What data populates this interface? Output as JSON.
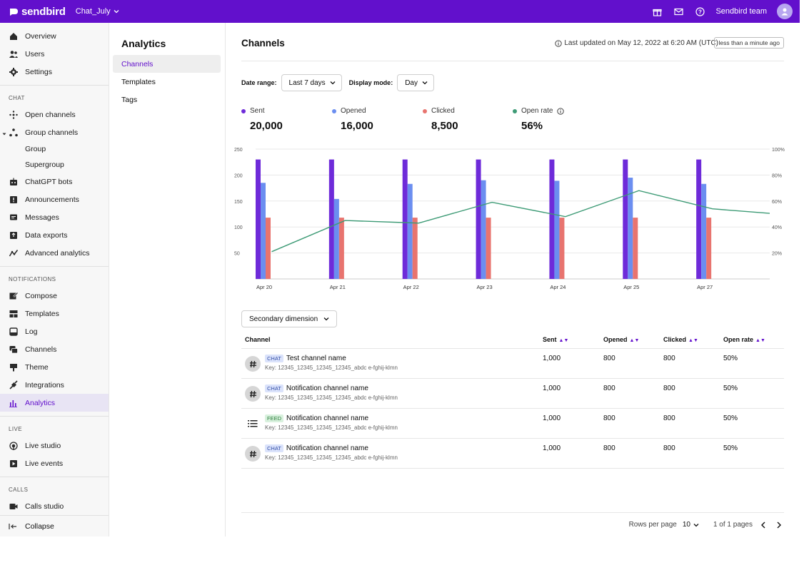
{
  "colors": {
    "brand": "#6210cc",
    "sent": "#6e2bd9",
    "opened": "#6b8ef0",
    "clicked": "#e8746f",
    "open_rate": "#3e9b76"
  },
  "topbar": {
    "logo": "sendbird",
    "app_name": "Chat_July",
    "team": "Sendbird team"
  },
  "sidebar": {
    "top": [
      {
        "label": "Overview",
        "icon": "home-icon"
      },
      {
        "label": "Users",
        "icon": "users-icon"
      },
      {
        "label": "Settings",
        "icon": "gear-icon"
      }
    ],
    "chat_label": "CHAT",
    "chat": [
      {
        "label": "Open channels",
        "icon": "open-channels-icon"
      },
      {
        "label": "Group channels",
        "icon": "group-channels-icon"
      },
      {
        "label": "Group",
        "icon": ""
      },
      {
        "label": "Supergroup",
        "icon": ""
      },
      {
        "label": "ChatGPT bots",
        "icon": "bot-icon"
      },
      {
        "label": "Announcements",
        "icon": "announcement-icon"
      },
      {
        "label": "Messages",
        "icon": "messages-icon"
      },
      {
        "label": "Data exports",
        "icon": "export-icon"
      },
      {
        "label": "Advanced analytics",
        "icon": "analytics-line-icon"
      }
    ],
    "notifications_label": "NOTIFICATIONS",
    "notifications": [
      {
        "label": "Compose",
        "icon": "compose-icon"
      },
      {
        "label": "Templates",
        "icon": "templates-icon"
      },
      {
        "label": "Log",
        "icon": "log-icon"
      },
      {
        "label": "Channels",
        "icon": "channels-icon"
      },
      {
        "label": "Theme",
        "icon": "theme-icon"
      },
      {
        "label": "Integrations",
        "icon": "integrations-icon"
      },
      {
        "label": "Analytics",
        "icon": "bar-chart-icon"
      }
    ],
    "live_label": "LIVE",
    "live": [
      {
        "label": "Live studio",
        "icon": "live-studio-icon"
      },
      {
        "label": "Live events",
        "icon": "live-events-icon"
      }
    ],
    "calls_label": "CALLS",
    "calls": [
      {
        "label": "Calls studio",
        "icon": "calls-studio-icon"
      }
    ],
    "collapse": "Collapse"
  },
  "subnav": {
    "title": "Analytics",
    "items": [
      "Channels",
      "Templates",
      "Tags"
    ]
  },
  "main": {
    "title": "Channels",
    "updated": "Last updated on May 12, 2022 at 6:20 AM (UTC)",
    "updated_badge": "less than a minute ago",
    "date_range_label": "Date range:",
    "date_range_value": "Last 7 days",
    "display_mode_label": "Display mode:",
    "display_mode_value": "Day",
    "secondary_dimension": "Secondary dimension"
  },
  "metrics": [
    {
      "label": "Sent",
      "value": "20,000",
      "color": "#6e2bd9"
    },
    {
      "label": "Opened",
      "value": "16,000",
      "color": "#6b8ef0"
    },
    {
      "label": "Clicked",
      "value": "8,500",
      "color": "#e8746f"
    },
    {
      "label": "Open rate",
      "value": "56%",
      "color": "#3e9b76"
    }
  ],
  "chart_data": {
    "type": "bar",
    "categories": [
      "Apr 20",
      "Apr 21",
      "Apr 22",
      "Apr 23",
      "Apr 24",
      "Apr 25",
      "Apr 27"
    ],
    "series": [
      {
        "name": "Sent",
        "values": [
          230,
          230,
          230,
          230,
          230,
          230,
          230
        ]
      },
      {
        "name": "Opened",
        "values": [
          185,
          154,
          183,
          190,
          189,
          195,
          183
        ]
      },
      {
        "name": "Clicked",
        "values": [
          118,
          118,
          118,
          118,
          118,
          118,
          118
        ]
      },
      {
        "name": "Open rate",
        "type": "line",
        "axis": "right",
        "values": [
          21,
          45,
          43,
          59,
          48,
          68,
          54
        ]
      }
    ],
    "ylim": [
      0,
      250
    ],
    "yticks": [
      50,
      100,
      150,
      200,
      250
    ],
    "y2lim": [
      0,
      100
    ],
    "y2ticks": [
      "20%",
      "40%",
      "60%",
      "80%",
      "100%"
    ],
    "xlabel": "",
    "ylabel": ""
  },
  "table": {
    "headers": {
      "channel": "Channel",
      "sent": "Sent",
      "opened": "Opened",
      "clicked": "Clicked",
      "open_rate": "Open rate"
    },
    "rows": [
      {
        "tag": "CHAT",
        "name": "Test channel name",
        "key": "Key: 12345_12345_12345_12345_abdc e-fghij-klmn",
        "sent": "1,000",
        "opened": "800",
        "clicked": "800",
        "open_rate": "50%"
      },
      {
        "tag": "CHAT",
        "name": "Notification channel name",
        "key": "Key: 12345_12345_12345_12345_abdc e-fghij-klmn",
        "sent": "1,000",
        "opened": "800",
        "clicked": "800",
        "open_rate": "50%"
      },
      {
        "tag": "FEED",
        "name": "Notification channel name",
        "key": "Key: 12345_12345_12345_12345_abdc e-fghij-klmn",
        "sent": "1,000",
        "opened": "800",
        "clicked": "800",
        "open_rate": "50%"
      },
      {
        "tag": "CHAT",
        "name": "Notification channel name",
        "key": "Key: 12345_12345_12345_12345_abdc e-fghij-klmn",
        "sent": "1,000",
        "opened": "800",
        "clicked": "800",
        "open_rate": "50%"
      }
    ]
  },
  "pagination": {
    "rows_label": "Rows per page",
    "rows_value": "10",
    "pages": "1 of 1 pages"
  }
}
